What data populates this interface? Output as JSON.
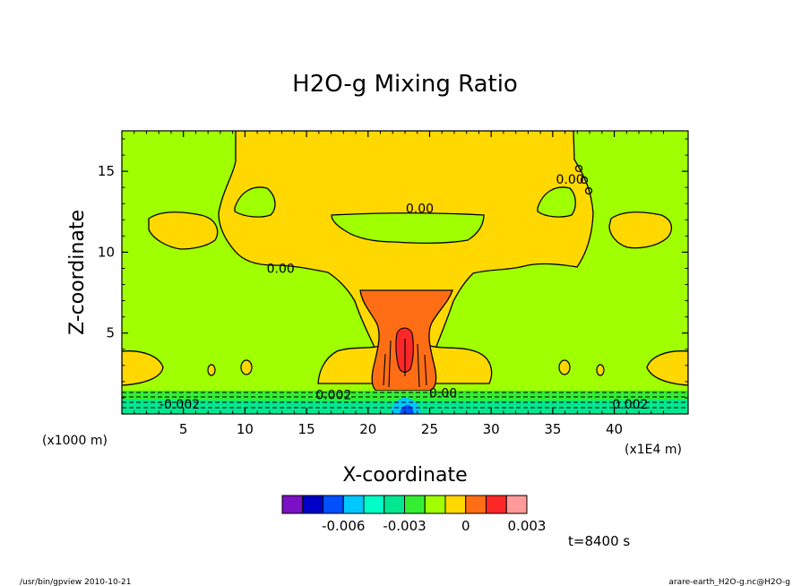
{
  "chart_data": {
    "type": "contour",
    "title": "H2O-g Mixing Ratio",
    "xlabel": "X-coordinate",
    "ylabel": "Z-coordinate",
    "x_unit_left": "(x1000 m)",
    "x_unit_right": "(x1E4 m)",
    "xlim": [
      0,
      46
    ],
    "ylim": [
      0,
      17.5
    ],
    "x_ticks": [
      5,
      10,
      15,
      20,
      25,
      30,
      35,
      40
    ],
    "y_ticks": [
      5,
      10,
      15
    ],
    "colorbar": {
      "colors": [
        "#7b10c4",
        "#0000c8",
        "#0050ff",
        "#00c8ff",
        "#00ffc8",
        "#00e890",
        "#33ee33",
        "#a0ff00",
        "#ffd800",
        "#ff6e14",
        "#ff2828",
        "#ff9a9a"
      ],
      "tick_labels": [
        "-0.006",
        "-0.003",
        "0",
        "0.003"
      ],
      "tick_positions": [
        -0.006,
        -0.003,
        0,
        0.003
      ],
      "range": [
        -0.009,
        0.003
      ]
    },
    "contour_labels": [
      {
        "text": "-0.002",
        "x": 4.7,
        "z": 0.6
      },
      {
        "text": "0.002",
        "x": 17.2,
        "z": 1.2
      },
      {
        "text": "0.00",
        "x": 26.1,
        "z": 1.3
      },
      {
        "text": "0.002",
        "x": 41.3,
        "z": 0.6
      },
      {
        "text": "0.00",
        "x": 12.9,
        "z": 9.0
      },
      {
        "text": "0.00",
        "x": 24.2,
        "z": 12.7
      },
      {
        "text": "0.00",
        "x": 36.4,
        "z": 14.5
      }
    ],
    "time_label": "t=8400 s"
  },
  "footer": {
    "left": "/usr/bin/gpview   2010-10-21",
    "right": "arare-earth_H2O-g.nc@H2O-g"
  },
  "colors": {
    "background_field": "#a0ff00",
    "moist_region": "#ffd800",
    "core": "#ff6e14",
    "core_max": "#ff2828",
    "near_surface": "#00e890"
  }
}
